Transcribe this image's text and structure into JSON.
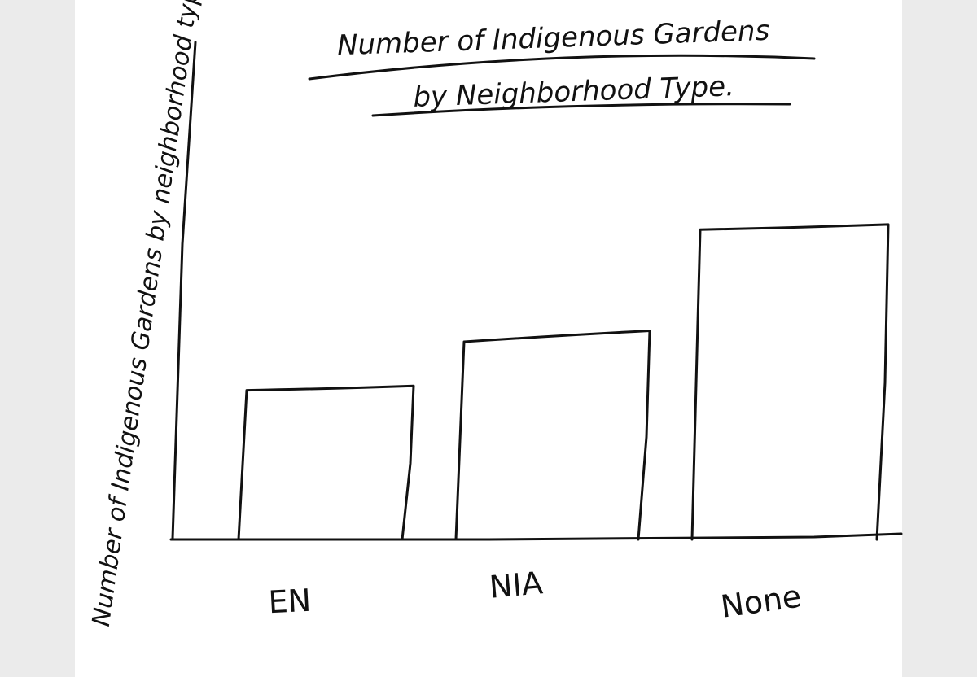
{
  "chart_data": {
    "type": "bar",
    "title": "Number of Indigenous Gardens",
    "subtitle": "by Neighborhood Type.",
    "ylabel": "Number of Indigenous Gardens by neighborhood type",
    "xlabel": "",
    "categories": [
      "EN",
      "NIA",
      "None"
    ],
    "values": [
      187,
      252,
      385
    ],
    "ylim": [
      0,
      620
    ],
    "grid": false,
    "legend": "none",
    "style": "hand-drawn sketch, black ink on white"
  }
}
